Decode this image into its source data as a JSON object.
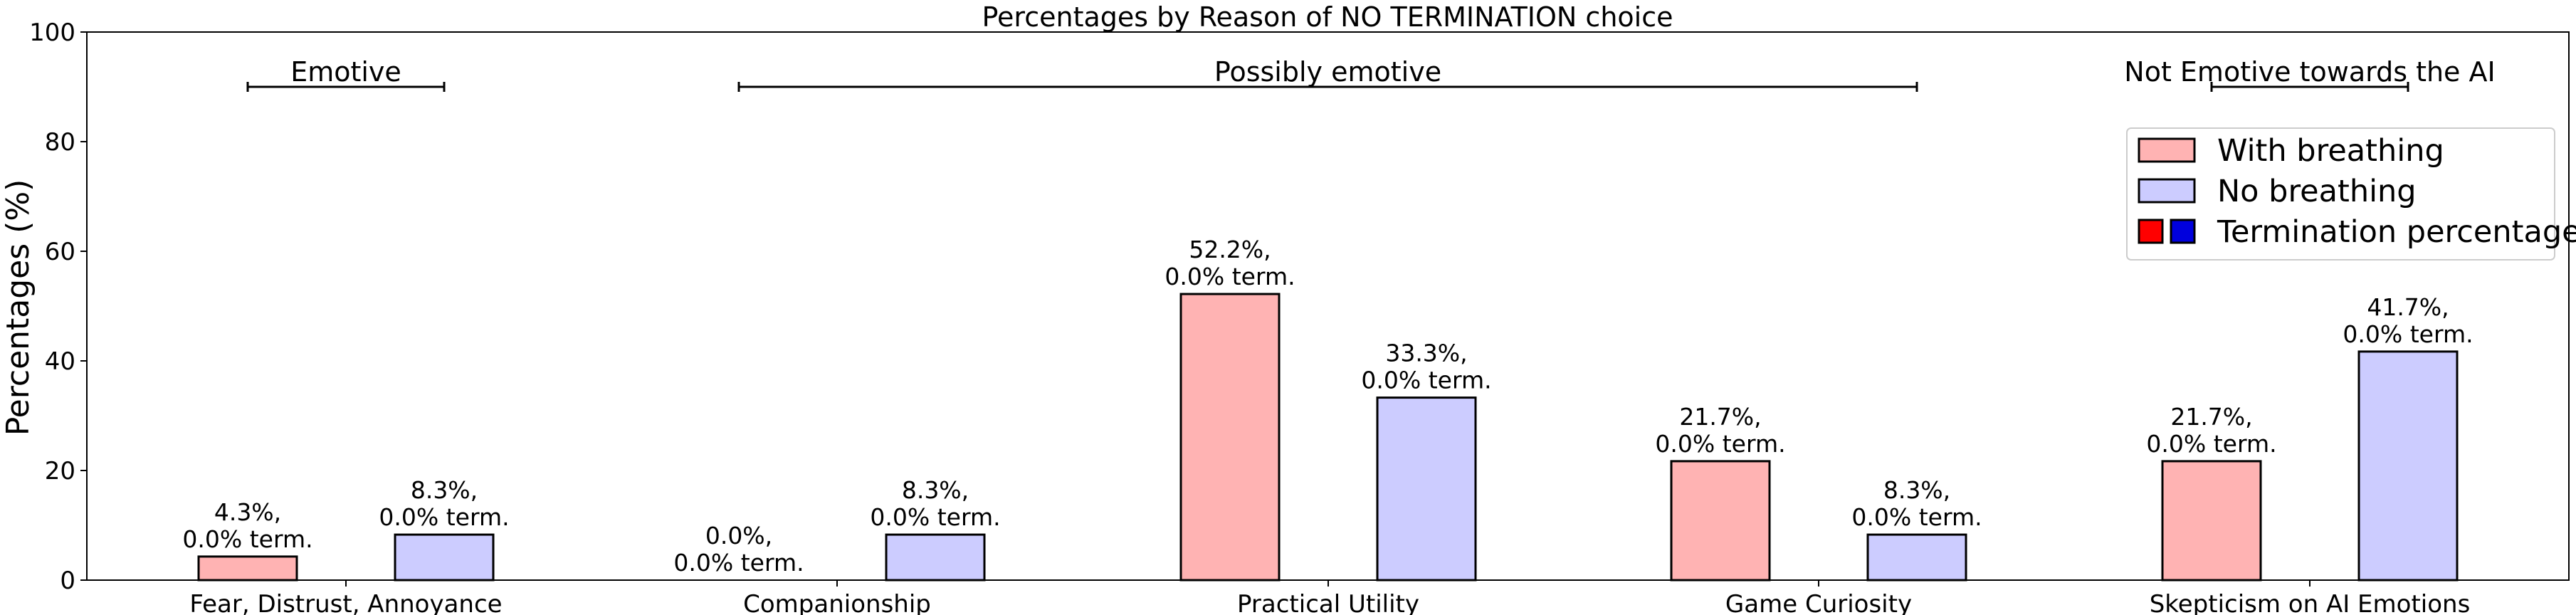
{
  "chart_data": {
    "type": "bar",
    "title": "Percentages by Reason of NO TERMINATION choice",
    "ylabel": "Percentages (%)",
    "xlabel": "",
    "ylim": [
      0,
      100
    ],
    "yticks": [
      "0",
      "20",
      "40",
      "60",
      "80",
      "100"
    ],
    "categories": [
      "Fear, Distrust, Annoyance",
      "Companionship",
      "Practical Utility",
      "Game Curiosity",
      "Skepticism on AI Emotions"
    ],
    "series": [
      {
        "name": "With breathing",
        "color": "#ffb3b3",
        "values": [
          4.3,
          0.0,
          52.2,
          21.7,
          21.7
        ],
        "labels": [
          [
            "4.3%,",
            "0.0% term."
          ],
          [
            "0.0%,",
            "0.0% term."
          ],
          [
            "52.2%,",
            "0.0% term."
          ],
          [
            "21.7%,",
            "0.0% term."
          ],
          [
            "21.7%,",
            "0.0% term."
          ]
        ]
      },
      {
        "name": "No breathing",
        "color": "#ccccff",
        "values": [
          8.3,
          8.3,
          33.3,
          8.3,
          41.7
        ],
        "labels": [
          [
            "8.3%,",
            "0.0% term."
          ],
          [
            "8.3%,",
            "0.0% term."
          ],
          [
            "33.3%,",
            "0.0% term."
          ],
          [
            "8.3%,",
            "0.0% term."
          ],
          [
            "41.7%,",
            "0.0% term."
          ]
        ]
      }
    ],
    "groups": [
      {
        "label": "Emotive",
        "from": 0,
        "to": 0
      },
      {
        "label": "Possibly emotive",
        "from": 1,
        "to": 3
      },
      {
        "label": "Not Emotive towards the AI",
        "from": 4,
        "to": 4
      }
    ],
    "legend": {
      "position": "top-right",
      "entries": [
        "With breathing",
        "No breathing",
        "Termination percentage"
      ],
      "termination_colors": [
        "#ff0000",
        "#0000dd"
      ]
    },
    "grid": false
  }
}
